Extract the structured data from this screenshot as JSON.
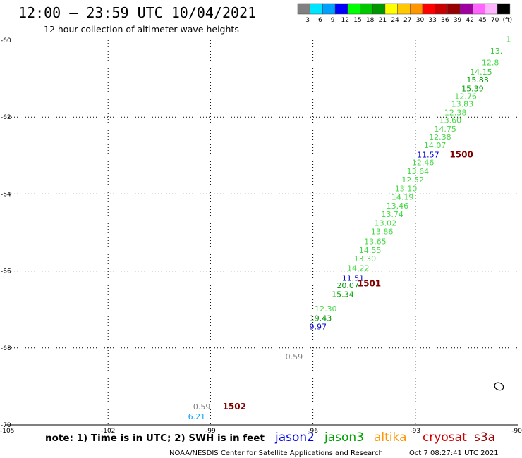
{
  "header": {
    "title": "12:00 – 23:59 UTC 10/04/2021",
    "subtitle": "12 hour collection of altimeter wave heights"
  },
  "colorbar": {
    "colors": [
      "#808080",
      "#00e5ff",
      "#00a0ff",
      "#0000ff",
      "#00ff00",
      "#00c800",
      "#009600",
      "#ffff00",
      "#ffc800",
      "#ff9600",
      "#ff0000",
      "#c80000",
      "#960000",
      "#a000a0",
      "#ff64ff",
      "#ffb4ff",
      "#000000"
    ],
    "labels": [
      "3",
      "6",
      "9",
      "12",
      "15",
      "18",
      "21",
      "24",
      "27",
      "30",
      "33",
      "36",
      "39",
      "42",
      "45",
      "70",
      "(ft)"
    ]
  },
  "footer": {
    "note": "note: 1) Time is in UTC; 2) SWH is in feet",
    "credit": "NOAA/NESDIS Center for Satellite Applications and Research",
    "timestamp": "Oct  7 08:27:41 UTC 2021"
  },
  "chart_data": {
    "type": "scatter",
    "xlim": [
      -105,
      -90
    ],
    "ylim": [
      -70,
      -60
    ],
    "x_ticks": [
      -105,
      -102,
      -99,
      -96,
      -93,
      -90
    ],
    "x_tick_labels": [
      "-105",
      "-102",
      "-99",
      "-96",
      "-93",
      "-90"
    ],
    "y_ticks": [
      -60,
      -62,
      -64,
      -66,
      -68,
      -70
    ],
    "y_tick_labels": [
      "-60",
      "-62",
      "-64",
      "-66",
      "-68",
      "-70"
    ],
    "grid": true,
    "legend": [
      {
        "name": "jason2",
        "color": "#0000e6"
      },
      {
        "name": "jason3",
        "color": "#00a000"
      },
      {
        "name": "altika",
        "color": "#ff9600"
      },
      {
        "name": "cryosat",
        "color": "#d00000"
      },
      {
        "name": "s3a",
        "color": "#a00000"
      }
    ],
    "wave_heights": [
      {
        "lon": -90.2,
        "lat": -60.05,
        "label": "1",
        "color": "#33cc33"
      },
      {
        "lon": -90.45,
        "lat": -60.35,
        "label": "13.",
        "color": "#33cc33"
      },
      {
        "lon": -90.55,
        "lat": -60.65,
        "label": "12.8",
        "color": "#44d944"
      },
      {
        "lon": -90.75,
        "lat": -60.9,
        "label": "14.15",
        "color": "#33cc33"
      },
      {
        "lon": -90.85,
        "lat": -61.1,
        "label": "15.83",
        "color": "#00a000"
      },
      {
        "lon": -91.0,
        "lat": -61.33,
        "label": "15.39",
        "color": "#00a000"
      },
      {
        "lon": -91.2,
        "lat": -61.53,
        "label": "12.76",
        "color": "#44d944"
      },
      {
        "lon": -91.3,
        "lat": -61.73,
        "label": "13.83",
        "color": "#44d944"
      },
      {
        "lon": -91.5,
        "lat": -61.95,
        "label": "12.38",
        "color": "#44d944"
      },
      {
        "lon": -91.65,
        "lat": -62.15,
        "label": "13.60",
        "color": "#44d944"
      },
      {
        "lon": -91.8,
        "lat": -62.38,
        "label": "14.75",
        "color": "#44d944"
      },
      {
        "lon": -91.95,
        "lat": -62.58,
        "label": "12.38",
        "color": "#44d944"
      },
      {
        "lon": -92.1,
        "lat": -62.8,
        "label": "14.07",
        "color": "#44d944"
      },
      {
        "lon": -92.3,
        "lat": -63.05,
        "label": "11.57",
        "color": "#0000cc"
      },
      {
        "lon": -92.45,
        "lat": -63.25,
        "label": "12.46",
        "color": "#44d944"
      },
      {
        "lon": -92.6,
        "lat": -63.48,
        "label": "13.64",
        "color": "#44d944"
      },
      {
        "lon": -92.75,
        "lat": -63.7,
        "label": "12.52",
        "color": "#44d944"
      },
      {
        "lon": -92.95,
        "lat": -63.93,
        "label": "13.10",
        "color": "#44d944"
      },
      {
        "lon": -93.05,
        "lat": -64.15,
        "label": "14.19",
        "color": "#44d944"
      },
      {
        "lon": -93.2,
        "lat": -64.38,
        "label": "13.46",
        "color": "#44d944"
      },
      {
        "lon": -93.35,
        "lat": -64.6,
        "label": "13.74",
        "color": "#44d944"
      },
      {
        "lon": -93.55,
        "lat": -64.83,
        "label": "13.02",
        "color": "#44d944"
      },
      {
        "lon": -93.65,
        "lat": -65.05,
        "label": "13.86",
        "color": "#44d944"
      },
      {
        "lon": -93.85,
        "lat": -65.3,
        "label": "13.65",
        "color": "#44d944"
      },
      {
        "lon": -94.0,
        "lat": -65.53,
        "label": "14.55",
        "color": "#44d944"
      },
      {
        "lon": -94.15,
        "lat": -65.75,
        "label": "13.30",
        "color": "#44d944"
      },
      {
        "lon": -94.35,
        "lat": -66.0,
        "label": "14.22",
        "color": "#44d944"
      },
      {
        "lon": -94.5,
        "lat": -66.25,
        "label": "11.51",
        "color": "#0000cc"
      },
      {
        "lon": -94.65,
        "lat": -66.45,
        "label": "20.07",
        "color": "#009600"
      },
      {
        "lon": -94.8,
        "lat": -66.68,
        "label": "15.34",
        "color": "#00a000"
      },
      {
        "lon": -95.3,
        "lat": -67.05,
        "label": "12.30",
        "color": "#44d944"
      },
      {
        "lon": -95.45,
        "lat": -67.3,
        "label": "19.43",
        "color": "#009600"
      },
      {
        "lon": -95.6,
        "lat": -67.52,
        "label": "9.97",
        "color": "#0000cc"
      },
      {
        "lon": -96.3,
        "lat": -68.3,
        "label": "0.59",
        "color": "#808080"
      },
      {
        "lon": -99.0,
        "lat": -69.6,
        "label": "0.59",
        "color": "#808080"
      },
      {
        "lon": -99.15,
        "lat": -69.85,
        "label": "6.21",
        "color": "#00a0ff"
      }
    ],
    "pass_ids": [
      {
        "lon": -91.65,
        "lat": -63.05,
        "label": "1500",
        "color": "#800000"
      },
      {
        "lon": -94.35,
        "lat": -66.4,
        "label": "1501",
        "color": "#800000"
      },
      {
        "lon": -98.3,
        "lat": -69.6,
        "label": "1502",
        "color": "#800000"
      }
    ],
    "ice_contour": {
      "lon": -90.55,
      "lat": -69.0
    }
  }
}
